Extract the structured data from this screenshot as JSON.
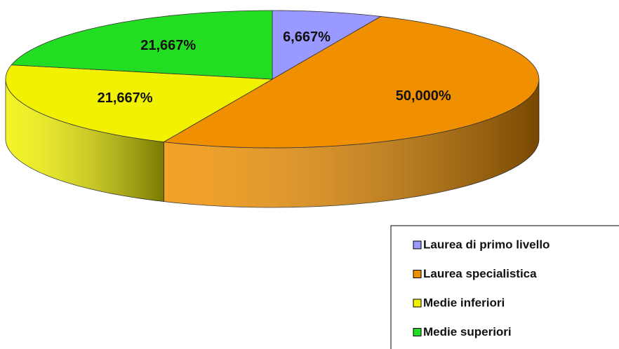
{
  "chart_data": {
    "type": "pie",
    "categories": [
      "Laurea di primo livello",
      "Laurea specialistica",
      "Medie inferiori",
      "Medie superiori"
    ],
    "values": [
      6.667,
      50,
      21.667,
      21.667
    ],
    "value_labels": [
      "6,667%",
      "50,000%",
      "21,667%",
      "21,667%"
    ],
    "colors": [
      "#9999ff",
      "#f09000",
      "#f2f200",
      "#22dd22"
    ],
    "legend": "bottom-right"
  }
}
